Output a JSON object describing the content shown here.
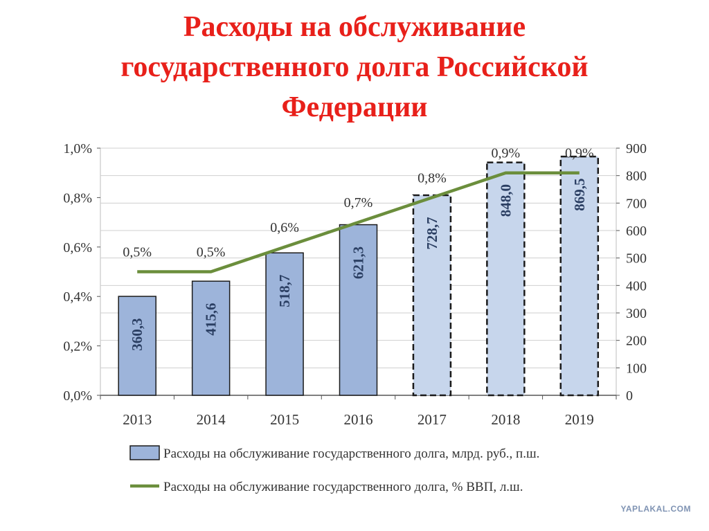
{
  "title_lines": [
    "Расходы на обслуживание",
    "государственного долга Российской",
    "Федерации"
  ],
  "watermark": "YAPLAKAL.COM",
  "colors": {
    "title": "#e8201a",
    "bar_fill": "#9db4da",
    "bar_fill_forecast": "#c7d6ec",
    "bar_stroke": "#1a1a1a",
    "line": "#6b8e3c",
    "grid": "#cfcfcf"
  },
  "chart_data": {
    "type": "bar",
    "categories": [
      "2013",
      "2014",
      "2015",
      "2016",
      "2017",
      "2018",
      "2019"
    ],
    "series": [
      {
        "name": "Расходы на обслуживание государственного долга, млрд. руб., п.ш.",
        "type": "bar",
        "axis": "right",
        "values": [
          360.3,
          415.6,
          518.7,
          621.3,
          728.7,
          848.0,
          869.5
        ],
        "labels": [
          "360,3",
          "415,6",
          "518,7",
          "621,3",
          "728,7",
          "848,0",
          "869,5"
        ],
        "forecast_from_index": 4
      },
      {
        "name": "Расходы на обслуживание государственного долга, % ВВП, л.ш.",
        "type": "line",
        "axis": "left",
        "values": [
          0.5,
          0.5,
          0.6,
          0.7,
          0.8,
          0.9,
          0.9
        ],
        "labels": [
          "0,5%",
          "0,5%",
          "0,6%",
          "0,7%",
          "0,8%",
          "0,9%",
          "0,9%"
        ]
      }
    ],
    "y_left": {
      "ticks": [
        "0,0%",
        "0,2%",
        "0,4%",
        "0,6%",
        "0,8%",
        "1,0%"
      ],
      "tick_values": [
        0,
        0.2,
        0.4,
        0.6,
        0.8,
        1.0
      ],
      "ylim": [
        0,
        1.0
      ]
    },
    "y_right": {
      "ticks": [
        "0",
        "100",
        "200",
        "300",
        "400",
        "500",
        "600",
        "700",
        "800",
        "900"
      ],
      "tick_values": [
        0,
        100,
        200,
        300,
        400,
        500,
        600,
        700,
        800,
        900
      ],
      "ylim": [
        0,
        900
      ]
    },
    "grid": true,
    "legend_position": "bottom"
  }
}
